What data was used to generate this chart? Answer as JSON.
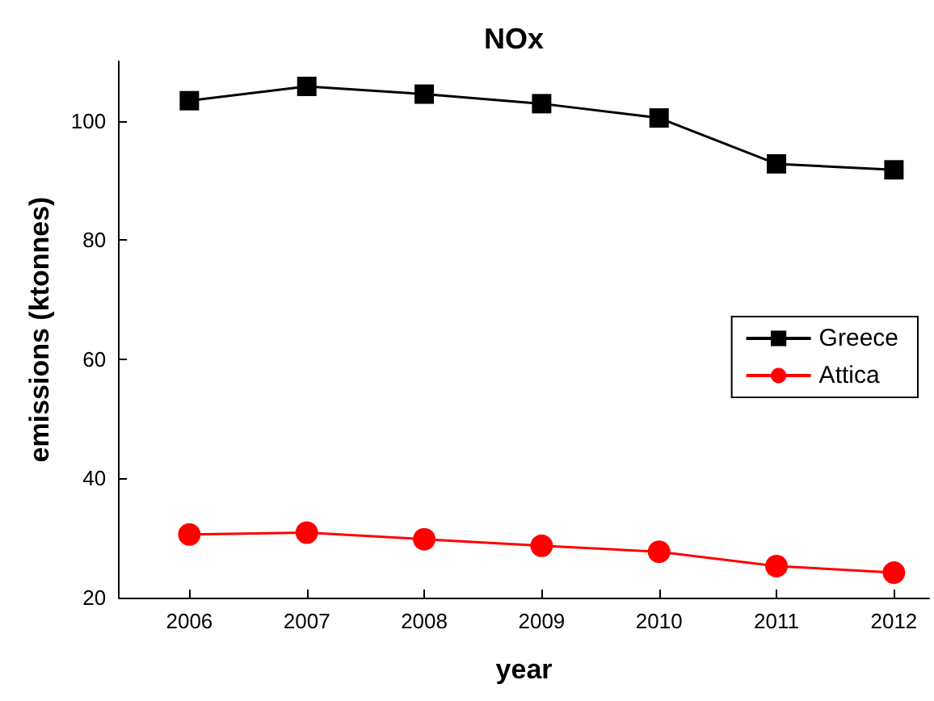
{
  "chart_data": {
    "type": "line",
    "title": "NOx",
    "xlabel": "year",
    "ylabel": "emissions (ktonnes)",
    "x": [
      2006,
      2007,
      2008,
      2009,
      2010,
      2011,
      2012
    ],
    "xlim": [
      2005.4,
      2012.3
    ],
    "xticks": [
      2006,
      2007,
      2008,
      2009,
      2010,
      2011,
      2012
    ],
    "ylim": [
      20,
      110
    ],
    "yticks": [
      20,
      40,
      60,
      80,
      100
    ],
    "grid": false,
    "legend": "right",
    "series": [
      {
        "name": "Greece",
        "color": "#000000",
        "marker": "square",
        "values": [
          103.4,
          105.8,
          104.5,
          102.9,
          100.5,
          92.8,
          91.8
        ]
      },
      {
        "name": "Attica",
        "color": "#ff0000",
        "marker": "circle",
        "values": [
          30.6,
          30.9,
          29.8,
          28.7,
          27.7,
          25.3,
          24.2
        ]
      }
    ]
  }
}
